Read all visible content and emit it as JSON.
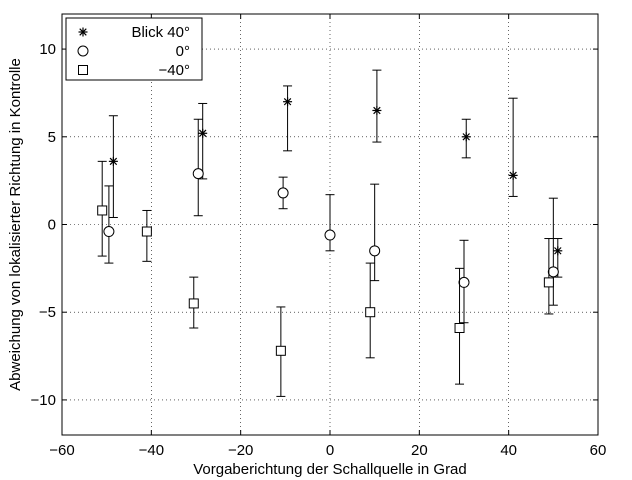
{
  "chart_data": {
    "type": "scatter",
    "xlabel": "Vorgaberichtung der Schallquelle in Grad",
    "ylabel": "Abweichung von lokalisierter Richtung in Kontrolle",
    "xlim": [
      -60,
      60
    ],
    "ylim": [
      -12,
      12
    ],
    "xticks": [
      -60,
      -40,
      -20,
      0,
      20,
      40,
      60
    ],
    "yticks": [
      -10,
      -5,
      0,
      5,
      10
    ],
    "xtick_labels": [
      "−60",
      "−40",
      "−20",
      "0",
      "20",
      "40",
      "60"
    ],
    "ytick_labels": [
      "−10",
      "−5",
      "0",
      "5",
      "10"
    ],
    "grid": true,
    "legend_position": "top-left",
    "series": [
      {
        "name": "Blick 40°",
        "marker": "star",
        "points": [
          {
            "x": -48.5,
            "y": 3.6,
            "lo": 0.4,
            "hi": 6.2
          },
          {
            "x": -28.5,
            "y": 5.2,
            "lo": 2.6,
            "hi": 6.9
          },
          {
            "x": -9.5,
            "y": 7.0,
            "lo": 4.2,
            "hi": 7.9
          },
          {
            "x": 10.5,
            "y": 6.5,
            "lo": 4.7,
            "hi": 8.8
          },
          {
            "x": 30.5,
            "y": 5.0,
            "lo": 3.8,
            "hi": 6.0
          },
          {
            "x": 41.0,
            "y": 2.8,
            "lo": 1.6,
            "hi": 7.2
          },
          {
            "x": 51.0,
            "y": -1.5,
            "lo": -3.0,
            "hi": -0.8
          }
        ]
      },
      {
        "name": "0°",
        "marker": "circle",
        "points": [
          {
            "x": -49.5,
            "y": -0.4,
            "lo": -2.2,
            "hi": 2.2
          },
          {
            "x": -29.5,
            "y": 2.9,
            "lo": 0.5,
            "hi": 6.0
          },
          {
            "x": -10.5,
            "y": 1.8,
            "lo": 0.9,
            "hi": 2.7
          },
          {
            "x": 0.0,
            "y": -0.6,
            "lo": -1.5,
            "hi": 1.7
          },
          {
            "x": 10.0,
            "y": -1.5,
            "lo": -3.2,
            "hi": 2.3
          },
          {
            "x": 30.0,
            "y": -3.3,
            "lo": -5.6,
            "hi": -0.9
          },
          {
            "x": 50.0,
            "y": -2.7,
            "lo": -4.6,
            "hi": 1.5
          }
        ]
      },
      {
        "name": "−40°",
        "marker": "square",
        "points": [
          {
            "x": -51.0,
            "y": 0.8,
            "lo": -1.8,
            "hi": 3.6
          },
          {
            "x": -41.0,
            "y": -0.4,
            "lo": -2.1,
            "hi": 0.8
          },
          {
            "x": -30.5,
            "y": -4.5,
            "lo": -5.9,
            "hi": -3.0
          },
          {
            "x": -11.0,
            "y": -7.2,
            "lo": -9.8,
            "hi": -4.7
          },
          {
            "x": 9.0,
            "y": -5.0,
            "lo": -7.6,
            "hi": -2.2
          },
          {
            "x": 29.0,
            "y": -5.9,
            "lo": -9.1,
            "hi": -2.5
          },
          {
            "x": 49.0,
            "y": -3.3,
            "lo": -5.1,
            "hi": -0.8
          }
        ]
      }
    ]
  }
}
